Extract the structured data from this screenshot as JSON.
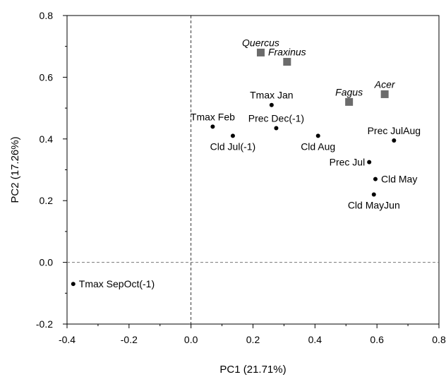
{
  "chart_data": {
    "type": "scatter",
    "title": "",
    "xlabel": "PC1 (21.71%)",
    "ylabel": "PC2 (17.26%)",
    "xlim": [
      -0.4,
      0.8
    ],
    "ylim": [
      -0.2,
      0.8
    ],
    "xticks": [
      "-0.4",
      "-0.2",
      "0.0",
      "0.2",
      "0.4",
      "0.6",
      "0.8"
    ],
    "yticks": [
      "-0.2",
      "0.0",
      "0.2",
      "0.4",
      "0.6",
      "0.8"
    ],
    "xtick_values": [
      -0.4,
      -0.2,
      0.0,
      0.2,
      0.4,
      0.6,
      0.8
    ],
    "ytick_values": [
      -0.2,
      0.0,
      0.2,
      0.4,
      0.6,
      0.8
    ],
    "reference_lines": {
      "x": 0,
      "y": 0,
      "style": "dashed"
    },
    "grid": false,
    "series": [
      {
        "marker": "circle",
        "color": "#000000",
        "points": [
          {
            "label": "Tmax Jan",
            "x": 0.26,
            "y": 0.51,
            "label_pos": "above"
          },
          {
            "label": "Tmax Feb",
            "x": 0.07,
            "y": 0.44,
            "label_pos": "above"
          },
          {
            "label": "Cld Jul(-1)",
            "x": 0.135,
            "y": 0.41,
            "label_pos": "below"
          },
          {
            "label": "Prec Dec(-1)",
            "x": 0.275,
            "y": 0.435,
            "label_pos": "above"
          },
          {
            "label": "Cld Aug",
            "x": 0.41,
            "y": 0.41,
            "label_pos": "below"
          },
          {
            "label": "Prec JulAug",
            "x": 0.655,
            "y": 0.395,
            "label_pos": "above"
          },
          {
            "label": "Prec Jul",
            "x": 0.575,
            "y": 0.325,
            "label_pos": "left"
          },
          {
            "label": "Cld May",
            "x": 0.595,
            "y": 0.27,
            "label_pos": "right"
          },
          {
            "label": "Cld MayJun",
            "x": 0.59,
            "y": 0.22,
            "label_pos": "below"
          },
          {
            "label": "Tmax SepOct(-1)",
            "x": -0.38,
            "y": -0.07,
            "label_pos": "right"
          }
        ]
      },
      {
        "marker": "square",
        "color": "#6b6b6b",
        "label_style": "italic",
        "points": [
          {
            "label": "Quercus",
            "x": 0.225,
            "y": 0.68,
            "label_pos": "above"
          },
          {
            "label": "Fraxinus",
            "x": 0.31,
            "y": 0.65,
            "label_pos": "above"
          },
          {
            "label": "Fagus",
            "x": 0.51,
            "y": 0.52,
            "label_pos": "above"
          },
          {
            "label": "Acer",
            "x": 0.625,
            "y": 0.545,
            "label_pos": "above"
          }
        ]
      }
    ]
  }
}
